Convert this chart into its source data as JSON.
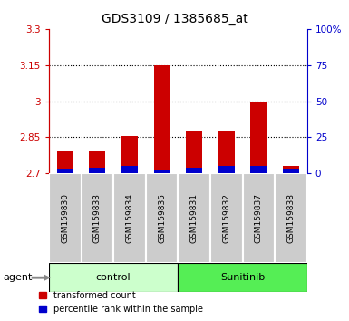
{
  "title": "GDS3109 / 1385685_at",
  "samples": [
    "GSM159830",
    "GSM159833",
    "GSM159834",
    "GSM159835",
    "GSM159831",
    "GSM159832",
    "GSM159837",
    "GSM159838"
  ],
  "transformed_counts": [
    2.79,
    2.79,
    2.855,
    3.148,
    2.876,
    2.876,
    3.0,
    2.73
  ],
  "percentile_ranks": [
    3,
    4,
    5,
    2,
    4,
    5,
    5,
    3
  ],
  "ymin": 2.7,
  "ymax": 3.3,
  "yright_min": 0,
  "yright_max": 100,
  "yticks_left": [
    2.7,
    2.85,
    3.0,
    3.15,
    3.3
  ],
  "ytick_labels_left": [
    "2.7",
    "2.85",
    "3",
    "3.15",
    "3.3"
  ],
  "yticks_right": [
    0,
    25,
    50,
    75,
    100
  ],
  "ytick_labels_right": [
    "0",
    "25",
    "50",
    "75",
    "100%"
  ],
  "grid_values": [
    2.85,
    3.0,
    3.15
  ],
  "bar_color_red": "#cc0000",
  "bar_color_blue": "#0000cc",
  "bar_width": 0.5,
  "control_color": "#ccffcc",
  "sunitinib_color": "#55ee55",
  "control_label": "control",
  "sunitinib_label": "Sunitinib",
  "agent_label": "agent",
  "legend_red_label": "transformed count",
  "legend_blue_label": "percentile rank within the sample",
  "axis_left_color": "#cc0000",
  "axis_right_color": "#0000cc",
  "sample_box_color": "#cccccc",
  "title_fontsize": 10
}
